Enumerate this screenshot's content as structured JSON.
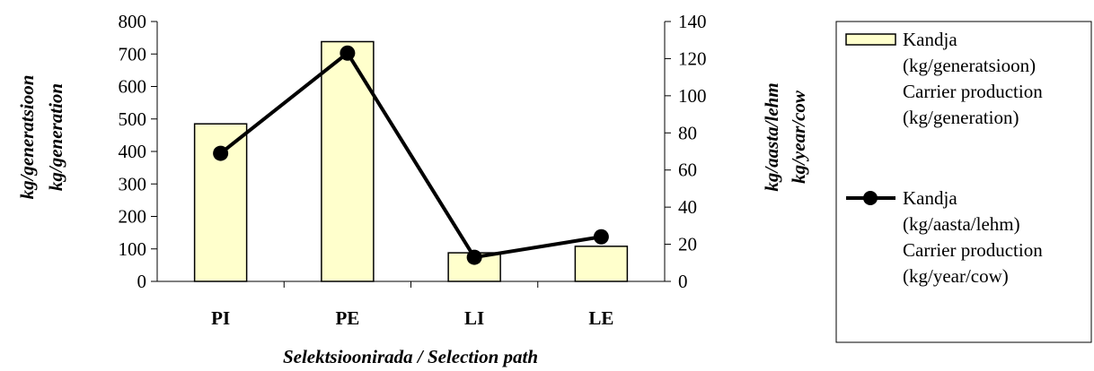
{
  "chart_data": {
    "type": "bar",
    "categories": [
      "PI",
      "PE",
      "LI",
      "LE"
    ],
    "series": [
      {
        "name": "Kandja (kg/generatsioon) Carrier production (kg/generation)",
        "type": "bar",
        "axis": "left",
        "values": [
          485,
          738,
          88,
          108
        ]
      },
      {
        "name": "Kandja (kg/aasta/lehm) Carrier production (kg/year/cow)",
        "type": "line",
        "axis": "right",
        "values": [
          69,
          123,
          13,
          24
        ]
      }
    ],
    "ylim_left": [
      0,
      800
    ],
    "yticks_left": [
      "0",
      "100",
      "200",
      "300",
      "400",
      "500",
      "600",
      "700",
      "800"
    ],
    "ylim_right": [
      0,
      140
    ],
    "yticks_right": [
      "0",
      "20",
      "40",
      "60",
      "80",
      "100",
      "120",
      "140"
    ],
    "xlabel": "Selektsioonirada / Selection path",
    "ylabel_left": [
      "kg/generatsioon",
      "kg/generation"
    ],
    "ylabel_right": [
      "kg/aasta/lehm",
      "kg/year/cow"
    ],
    "legend": {
      "position": "right",
      "entries": [
        {
          "lines": [
            "Kandja",
            "(kg/generatsioon)",
            "Carrier production",
            "(kg/generation)"
          ]
        },
        {
          "lines": [
            "Kandja",
            "(kg/aasta/lehm)",
            "Carrier production",
            "(kg/year/cow)"
          ]
        }
      ]
    },
    "colors": {
      "bar_fill": "#ffffcc",
      "stroke": "#000000",
      "line": "#000000"
    },
    "grid": false
  }
}
